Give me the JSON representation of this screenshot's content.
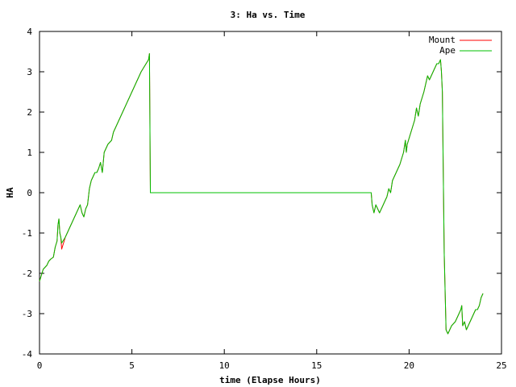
{
  "chart_data": {
    "type": "line",
    "title": "3: Ha vs. Time",
    "xlabel": "time (Elapse Hours)",
    "ylabel": "HA",
    "xlim": [
      0,
      25
    ],
    "ylim": [
      -4,
      4
    ],
    "xticks": [
      0,
      5,
      10,
      15,
      20,
      25
    ],
    "yticks": [
      -4,
      -3,
      -2,
      -1,
      0,
      1,
      2,
      3,
      4
    ],
    "grid": false,
    "legend_position": "top-right",
    "series": [
      {
        "name": "Mount",
        "color": "#ff0000",
        "x": [
          0,
          0.2,
          0.4,
          0.5,
          0.6,
          0.75,
          0.85,
          0.95,
          1.0,
          1.05,
          1.1,
          1.15,
          1.2,
          1.4,
          1.6,
          1.8,
          2.0,
          2.2,
          2.3,
          2.4,
          2.5,
          2.6,
          2.7,
          2.8,
          3.0,
          3.1,
          3.2,
          3.3,
          3.4,
          3.5,
          3.7,
          3.9,
          4.0,
          4.5,
          5.0,
          5.5,
          5.9,
          5.95,
          6.0,
          6.05,
          10,
          15,
          17.95,
          18.0,
          18.1,
          18.2,
          18.3,
          18.4,
          18.6,
          18.8,
          18.9,
          19.0,
          19.1,
          19.3,
          19.5,
          19.7,
          19.8,
          19.85,
          19.9,
          20.1,
          20.3,
          20.4,
          20.5,
          20.6,
          20.8,
          20.9,
          21.0,
          21.1,
          21.3,
          21.5,
          21.6,
          21.7,
          21.75,
          21.8,
          21.85,
          21.9,
          22.0,
          22.1,
          22.2,
          22.3,
          22.5,
          22.7,
          22.8,
          22.85,
          22.9,
          23.0,
          23.1,
          23.2,
          23.3,
          23.4,
          23.5,
          23.6,
          23.7,
          23.8,
          23.9,
          24.0
        ],
        "y": [
          -2.2,
          -1.9,
          -1.8,
          -1.7,
          -1.65,
          -1.6,
          -1.35,
          -1.2,
          -0.8,
          -0.65,
          -1.0,
          -1.1,
          -1.4,
          -1.1,
          -0.9,
          -0.7,
          -0.5,
          -0.3,
          -0.5,
          -0.6,
          -0.4,
          -0.3,
          0.1,
          0.3,
          0.5,
          0.5,
          0.6,
          0.75,
          0.5,
          1.0,
          1.2,
          1.3,
          1.5,
          2.0,
          2.5,
          3.0,
          3.3,
          3.45,
          0.0,
          0.0,
          0.0,
          0.0,
          0.0,
          -0.3,
          -0.5,
          -0.3,
          -0.4,
          -0.5,
          -0.3,
          -0.1,
          0.1,
          0.0,
          0.3,
          0.5,
          0.7,
          1.0,
          1.3,
          1.0,
          1.2,
          1.5,
          1.8,
          2.1,
          1.9,
          2.2,
          2.5,
          2.7,
          2.9,
          2.8,
          3.0,
          3.2,
          3.2,
          3.3,
          3.0,
          2.5,
          0.5,
          -1.5,
          -3.4,
          -3.5,
          -3.4,
          -3.3,
          -3.2,
          -3.0,
          -2.9,
          -2.8,
          -3.3,
          -3.2,
          -3.4,
          -3.3,
          -3.2,
          -3.1,
          -3.0,
          -2.9,
          -2.9,
          -2.8,
          -2.6,
          -2.5
        ]
      },
      {
        "name": "Ape",
        "color": "#00c000",
        "x": [
          0,
          0.2,
          0.4,
          0.5,
          0.6,
          0.75,
          0.85,
          0.95,
          1.0,
          1.05,
          1.1,
          1.15,
          1.2,
          1.4,
          1.6,
          1.8,
          2.0,
          2.2,
          2.3,
          2.4,
          2.5,
          2.6,
          2.7,
          2.8,
          3.0,
          3.1,
          3.2,
          3.3,
          3.4,
          3.5,
          3.7,
          3.9,
          4.0,
          4.5,
          5.0,
          5.5,
          5.9,
          5.95,
          6.0,
          6.05,
          10,
          15,
          17.95,
          18.0,
          18.1,
          18.2,
          18.3,
          18.4,
          18.6,
          18.8,
          18.9,
          19.0,
          19.1,
          19.3,
          19.5,
          19.7,
          19.8,
          19.85,
          19.9,
          20.1,
          20.3,
          20.4,
          20.5,
          20.6,
          20.8,
          20.9,
          21.0,
          21.1,
          21.3,
          21.5,
          21.6,
          21.7,
          21.75,
          21.8,
          21.85,
          21.9,
          22.0,
          22.1,
          22.2,
          22.3,
          22.5,
          22.7,
          22.8,
          22.85,
          22.9,
          23.0,
          23.1,
          23.2,
          23.3,
          23.4,
          23.5,
          23.6,
          23.7,
          23.8,
          23.9,
          24.0
        ],
        "y": [
          -2.2,
          -1.9,
          -1.8,
          -1.7,
          -1.65,
          -1.6,
          -1.35,
          -1.2,
          -0.8,
          -0.65,
          -1.0,
          -1.1,
          -1.25,
          -1.1,
          -0.9,
          -0.7,
          -0.5,
          -0.3,
          -0.5,
          -0.6,
          -0.4,
          -0.3,
          0.1,
          0.3,
          0.5,
          0.5,
          0.6,
          0.75,
          0.5,
          1.0,
          1.2,
          1.3,
          1.5,
          2.0,
          2.5,
          3.0,
          3.3,
          3.45,
          0.0,
          0.0,
          0.0,
          0.0,
          0.0,
          -0.3,
          -0.5,
          -0.3,
          -0.4,
          -0.5,
          -0.3,
          -0.1,
          0.1,
          0.0,
          0.3,
          0.5,
          0.7,
          1.0,
          1.3,
          1.0,
          1.2,
          1.5,
          1.8,
          2.1,
          1.9,
          2.2,
          2.5,
          2.7,
          2.9,
          2.8,
          3.0,
          3.2,
          3.2,
          3.3,
          3.0,
          2.5,
          0.5,
          -1.5,
          -3.4,
          -3.5,
          -3.4,
          -3.3,
          -3.2,
          -3.0,
          -2.9,
          -2.8,
          -3.3,
          -3.2,
          -3.4,
          -3.3,
          -3.2,
          -3.1,
          -3.0,
          -2.9,
          -2.9,
          -2.8,
          -2.6,
          -2.5
        ]
      }
    ]
  }
}
